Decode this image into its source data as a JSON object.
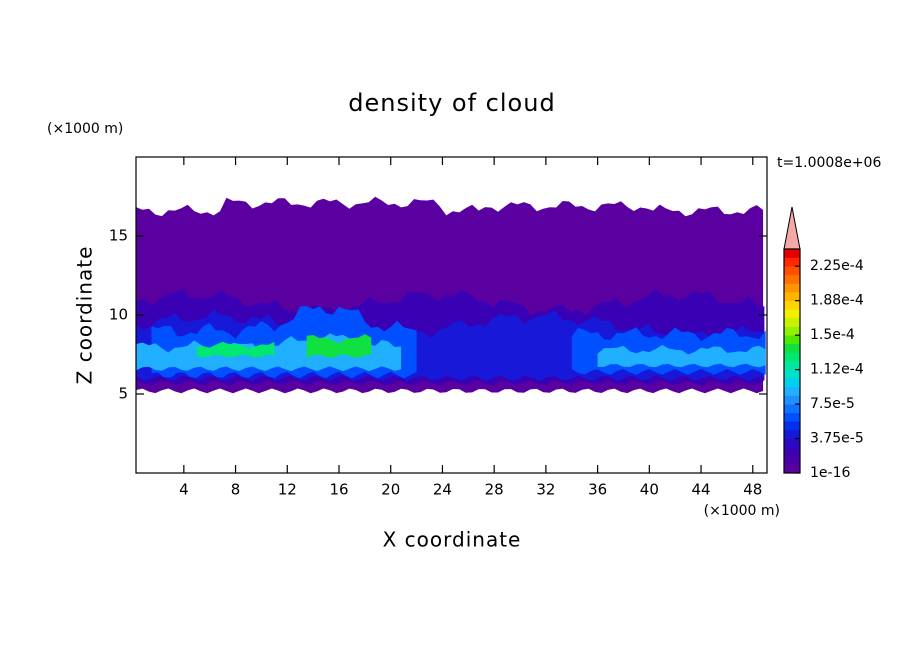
{
  "chart_data": {
    "type": "contour",
    "title": "density of cloud",
    "x_label": "X coordinate",
    "y_label": "Z coordinate",
    "x_unit": "(×1000 m)",
    "y_unit": "(×1000 m)",
    "time_label": "t=1.0008e+06",
    "xlim": [
      0.3,
      49.1
    ],
    "xticks": [
      4,
      8,
      12,
      16,
      20,
      24,
      28,
      32,
      36,
      40,
      44,
      48
    ],
    "ylim": [
      0,
      20
    ],
    "yticks": [
      5,
      10,
      15
    ],
    "colorbar": {
      "lim": [
        0,
        0.00024375
      ],
      "ticks": [
        {
          "value": 1e-16,
          "label": "1e-16"
        },
        {
          "value": 3.75e-05,
          "label": "3.75e-5"
        },
        {
          "value": 7.5e-05,
          "label": "7.5e-5"
        },
        {
          "value": 0.0001125,
          "label": "1.12e-4"
        },
        {
          "value": 0.00015,
          "label": "1.5e-4"
        },
        {
          "value": 0.0001875,
          "label": "1.88e-4"
        },
        {
          "value": 0.000225,
          "label": "2.25e-4"
        }
      ],
      "colors": [
        "#5a00a0",
        "#4a00a8",
        "#3a00b4",
        "#2a08c4",
        "#1818d8",
        "#0030ec",
        "#0050ff",
        "#1070ff",
        "#2090ff",
        "#20b0ff",
        "#00d0f0",
        "#00e0c8",
        "#00e8a0",
        "#00e870",
        "#10e040",
        "#50e800",
        "#90f000",
        "#c8f000",
        "#f0f000",
        "#ffd400",
        "#ffb400",
        "#ff9400",
        "#ff7000",
        "#ff5000",
        "#ff2800",
        "#e80000"
      ],
      "extend_color": "#f4a8a8"
    }
  }
}
